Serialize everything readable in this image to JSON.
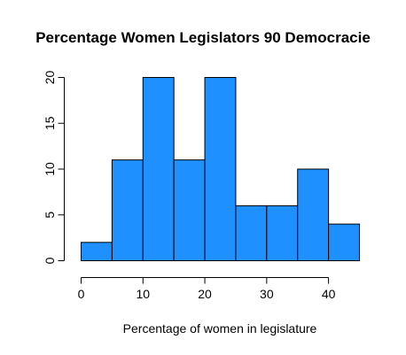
{
  "chart_data": {
    "type": "bar",
    "title": "Percentage Women Legislators 90 Democracie",
    "xlabel": "Percentage of women in legislature",
    "ylabel": "",
    "bins": [
      {
        "x0": 0,
        "x1": 5,
        "count": 2
      },
      {
        "x0": 5,
        "x1": 10,
        "count": 11
      },
      {
        "x0": 10,
        "x1": 15,
        "count": 20
      },
      {
        "x0": 15,
        "x1": 20,
        "count": 11
      },
      {
        "x0": 20,
        "x1": 25,
        "count": 20
      },
      {
        "x0": 25,
        "x1": 30,
        "count": 6
      },
      {
        "x0": 30,
        "x1": 35,
        "count": 6
      },
      {
        "x0": 35,
        "x1": 40,
        "count": 10
      },
      {
        "x0": 40,
        "x1": 45,
        "count": 4
      }
    ],
    "xlim": [
      0,
      45
    ],
    "ylim": [
      0,
      20
    ],
    "x_ticks": [
      0,
      10,
      20,
      30,
      40
    ],
    "y_ticks": [
      0,
      5,
      10,
      15,
      20
    ],
    "bar_color": "#1E90FF",
    "border_color": "#000000",
    "grid": false
  }
}
